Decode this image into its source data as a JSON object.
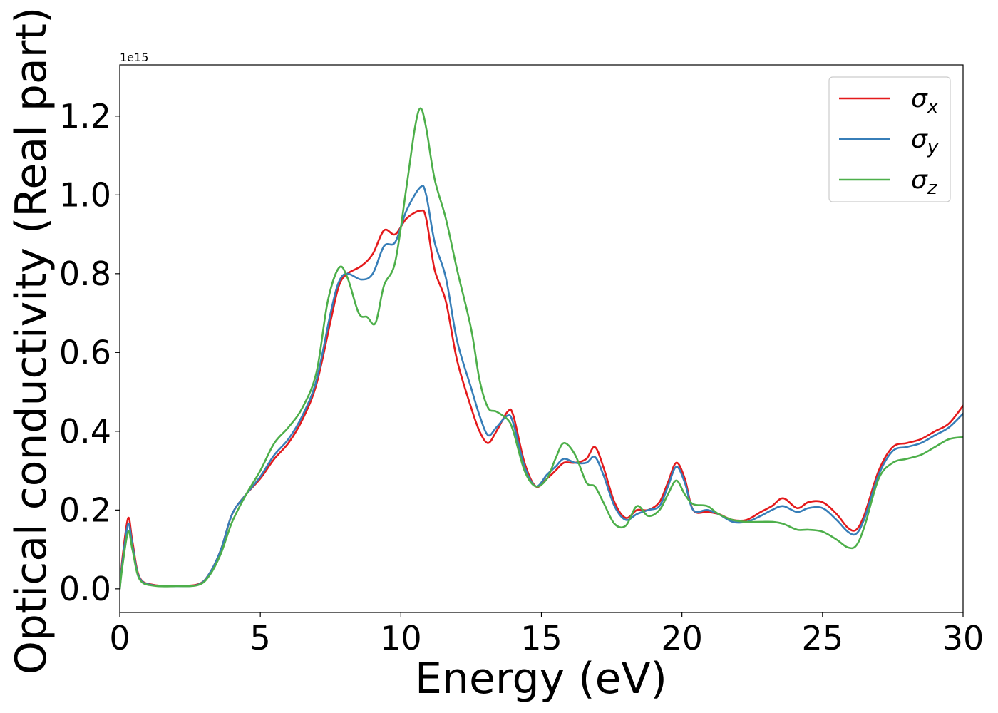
{
  "chart_data": {
    "type": "line",
    "xlabel": "Energy (eV)",
    "ylabel": "Optical conductivity (Real part)",
    "offset_text": "1e15",
    "y_scale_note": "values in units of 1e15",
    "xlim": [
      0,
      30
    ],
    "ylim": [
      -0.06,
      1.33
    ],
    "x_ticks": [
      0,
      5,
      10,
      15,
      20,
      25,
      30
    ],
    "x_tick_labels": [
      "0",
      "5",
      "10",
      "15",
      "20",
      "25",
      "30"
    ],
    "y_ticks": [
      0.0,
      0.2,
      0.4,
      0.6,
      0.8,
      1.0,
      1.2
    ],
    "y_tick_labels": [
      "0.0",
      "0.2",
      "0.4",
      "0.6",
      "0.8",
      "1.0",
      "1.2"
    ],
    "grid": false,
    "legend_position": "top-right",
    "series": [
      {
        "name": "σx",
        "symbol": "σ",
        "subscript": "x",
        "color": "#e41a1c",
        "points": [
          [
            0,
            0
          ],
          [
            0.1,
            0.08
          ],
          [
            0.3,
            0.18
          ],
          [
            0.45,
            0.12
          ],
          [
            0.7,
            0.03
          ],
          [
            1.2,
            0.01
          ],
          [
            2.0,
            0.008
          ],
          [
            2.8,
            0.012
          ],
          [
            3.2,
            0.04
          ],
          [
            3.6,
            0.1
          ],
          [
            4.0,
            0.19
          ],
          [
            4.5,
            0.24
          ],
          [
            5.0,
            0.28
          ],
          [
            5.5,
            0.33
          ],
          [
            6.0,
            0.37
          ],
          [
            6.5,
            0.43
          ],
          [
            7.0,
            0.52
          ],
          [
            7.5,
            0.68
          ],
          [
            7.8,
            0.77
          ],
          [
            8.1,
            0.8
          ],
          [
            8.6,
            0.82
          ],
          [
            9.0,
            0.85
          ],
          [
            9.4,
            0.91
          ],
          [
            9.8,
            0.9
          ],
          [
            10.2,
            0.94
          ],
          [
            10.7,
            0.96
          ],
          [
            10.9,
            0.94
          ],
          [
            11.2,
            0.81
          ],
          [
            11.6,
            0.73
          ],
          [
            12.0,
            0.58
          ],
          [
            12.5,
            0.46
          ],
          [
            12.8,
            0.4
          ],
          [
            13.1,
            0.37
          ],
          [
            13.4,
            0.4
          ],
          [
            13.8,
            0.45
          ],
          [
            14.0,
            0.44
          ],
          [
            14.4,
            0.32
          ],
          [
            14.8,
            0.26
          ],
          [
            15.2,
            0.28
          ],
          [
            15.5,
            0.3
          ],
          [
            15.8,
            0.32
          ],
          [
            16.2,
            0.32
          ],
          [
            16.6,
            0.33
          ],
          [
            16.9,
            0.36
          ],
          [
            17.2,
            0.31
          ],
          [
            17.6,
            0.22
          ],
          [
            18.0,
            0.18
          ],
          [
            18.4,
            0.2
          ],
          [
            18.8,
            0.2
          ],
          [
            19.2,
            0.22
          ],
          [
            19.5,
            0.27
          ],
          [
            19.8,
            0.32
          ],
          [
            20.1,
            0.28
          ],
          [
            20.4,
            0.2
          ],
          [
            20.9,
            0.195
          ],
          [
            21.3,
            0.19
          ],
          [
            21.8,
            0.175
          ],
          [
            22.3,
            0.175
          ],
          [
            22.8,
            0.195
          ],
          [
            23.2,
            0.21
          ],
          [
            23.6,
            0.23
          ],
          [
            24.1,
            0.205
          ],
          [
            24.5,
            0.22
          ],
          [
            25.0,
            0.22
          ],
          [
            25.5,
            0.19
          ],
          [
            25.9,
            0.155
          ],
          [
            26.2,
            0.15
          ],
          [
            26.5,
            0.19
          ],
          [
            27.0,
            0.3
          ],
          [
            27.5,
            0.36
          ],
          [
            28.0,
            0.37
          ],
          [
            28.5,
            0.38
          ],
          [
            29.0,
            0.4
          ],
          [
            29.5,
            0.42
          ],
          [
            30.0,
            0.465
          ]
        ]
      },
      {
        "name": "σy",
        "symbol": "σ",
        "subscript": "y",
        "color": "#377eb8",
        "points": [
          [
            0,
            0
          ],
          [
            0.1,
            0.07
          ],
          [
            0.3,
            0.165
          ],
          [
            0.45,
            0.11
          ],
          [
            0.7,
            0.028
          ],
          [
            1.2,
            0.009
          ],
          [
            2.0,
            0.007
          ],
          [
            2.8,
            0.011
          ],
          [
            3.2,
            0.04
          ],
          [
            3.6,
            0.1
          ],
          [
            4.0,
            0.19
          ],
          [
            4.5,
            0.24
          ],
          [
            5.0,
            0.285
          ],
          [
            5.5,
            0.34
          ],
          [
            6.0,
            0.38
          ],
          [
            6.5,
            0.44
          ],
          [
            7.0,
            0.53
          ],
          [
            7.5,
            0.7
          ],
          [
            7.8,
            0.78
          ],
          [
            8.1,
            0.8
          ],
          [
            8.6,
            0.785
          ],
          [
            9.0,
            0.8
          ],
          [
            9.4,
            0.87
          ],
          [
            9.8,
            0.88
          ],
          [
            10.2,
            0.96
          ],
          [
            10.7,
            1.02
          ],
          [
            10.9,
            1.0
          ],
          [
            11.2,
            0.88
          ],
          [
            11.6,
            0.79
          ],
          [
            12.0,
            0.63
          ],
          [
            12.5,
            0.51
          ],
          [
            12.8,
            0.44
          ],
          [
            13.1,
            0.39
          ],
          [
            13.4,
            0.41
          ],
          [
            13.8,
            0.44
          ],
          [
            14.0,
            0.42
          ],
          [
            14.4,
            0.31
          ],
          [
            14.8,
            0.26
          ],
          [
            15.2,
            0.29
          ],
          [
            15.5,
            0.31
          ],
          [
            15.8,
            0.33
          ],
          [
            16.2,
            0.32
          ],
          [
            16.6,
            0.32
          ],
          [
            16.9,
            0.335
          ],
          [
            17.2,
            0.29
          ],
          [
            17.6,
            0.21
          ],
          [
            18.0,
            0.175
          ],
          [
            18.4,
            0.19
          ],
          [
            18.8,
            0.2
          ],
          [
            19.2,
            0.21
          ],
          [
            19.5,
            0.26
          ],
          [
            19.8,
            0.31
          ],
          [
            20.1,
            0.27
          ],
          [
            20.4,
            0.2
          ],
          [
            20.9,
            0.2
          ],
          [
            21.3,
            0.19
          ],
          [
            21.8,
            0.17
          ],
          [
            22.3,
            0.17
          ],
          [
            22.8,
            0.185
          ],
          [
            23.2,
            0.2
          ],
          [
            23.6,
            0.21
          ],
          [
            24.1,
            0.195
          ],
          [
            24.5,
            0.205
          ],
          [
            25.0,
            0.205
          ],
          [
            25.5,
            0.175
          ],
          [
            25.9,
            0.145
          ],
          [
            26.2,
            0.14
          ],
          [
            26.5,
            0.18
          ],
          [
            27.0,
            0.29
          ],
          [
            27.5,
            0.35
          ],
          [
            28.0,
            0.36
          ],
          [
            28.5,
            0.37
          ],
          [
            29.0,
            0.39
          ],
          [
            29.5,
            0.41
          ],
          [
            30.0,
            0.445
          ]
        ]
      },
      {
        "name": "σz",
        "symbol": "σ",
        "subscript": "z",
        "color": "#4daf4a",
        "points": [
          [
            0,
            0
          ],
          [
            0.1,
            0.06
          ],
          [
            0.3,
            0.145
          ],
          [
            0.45,
            0.1
          ],
          [
            0.7,
            0.025
          ],
          [
            1.2,
            0.008
          ],
          [
            2.0,
            0.007
          ],
          [
            2.8,
            0.01
          ],
          [
            3.2,
            0.035
          ],
          [
            3.6,
            0.09
          ],
          [
            4.0,
            0.17
          ],
          [
            4.5,
            0.24
          ],
          [
            5.0,
            0.3
          ],
          [
            5.5,
            0.37
          ],
          [
            6.0,
            0.41
          ],
          [
            6.5,
            0.46
          ],
          [
            7.0,
            0.55
          ],
          [
            7.4,
            0.73
          ],
          [
            7.8,
            0.815
          ],
          [
            8.1,
            0.79
          ],
          [
            8.5,
            0.7
          ],
          [
            8.8,
            0.69
          ],
          [
            9.1,
            0.675
          ],
          [
            9.4,
            0.77
          ],
          [
            9.8,
            0.83
          ],
          [
            10.2,
            1.02
          ],
          [
            10.5,
            1.17
          ],
          [
            10.7,
            1.22
          ],
          [
            10.9,
            1.17
          ],
          [
            11.2,
            1.04
          ],
          [
            11.6,
            0.94
          ],
          [
            12.0,
            0.81
          ],
          [
            12.5,
            0.66
          ],
          [
            12.8,
            0.53
          ],
          [
            13.1,
            0.46
          ],
          [
            13.4,
            0.45
          ],
          [
            13.8,
            0.43
          ],
          [
            14.0,
            0.4
          ],
          [
            14.4,
            0.3
          ],
          [
            14.8,
            0.26
          ],
          [
            15.2,
            0.28
          ],
          [
            15.5,
            0.33
          ],
          [
            15.8,
            0.37
          ],
          [
            16.2,
            0.34
          ],
          [
            16.6,
            0.27
          ],
          [
            16.9,
            0.26
          ],
          [
            17.2,
            0.22
          ],
          [
            17.6,
            0.165
          ],
          [
            18.0,
            0.16
          ],
          [
            18.4,
            0.21
          ],
          [
            18.8,
            0.185
          ],
          [
            19.2,
            0.2
          ],
          [
            19.5,
            0.24
          ],
          [
            19.8,
            0.275
          ],
          [
            20.1,
            0.24
          ],
          [
            20.4,
            0.215
          ],
          [
            20.9,
            0.21
          ],
          [
            21.3,
            0.19
          ],
          [
            21.8,
            0.175
          ],
          [
            22.3,
            0.17
          ],
          [
            22.8,
            0.17
          ],
          [
            23.2,
            0.17
          ],
          [
            23.6,
            0.165
          ],
          [
            24.1,
            0.15
          ],
          [
            24.5,
            0.15
          ],
          [
            25.0,
            0.145
          ],
          [
            25.5,
            0.125
          ],
          [
            25.9,
            0.105
          ],
          [
            26.2,
            0.11
          ],
          [
            26.5,
            0.16
          ],
          [
            27.0,
            0.28
          ],
          [
            27.5,
            0.32
          ],
          [
            28.0,
            0.33
          ],
          [
            28.5,
            0.34
          ],
          [
            29.0,
            0.36
          ],
          [
            29.5,
            0.38
          ],
          [
            30.0,
            0.385
          ]
        ]
      }
    ]
  }
}
